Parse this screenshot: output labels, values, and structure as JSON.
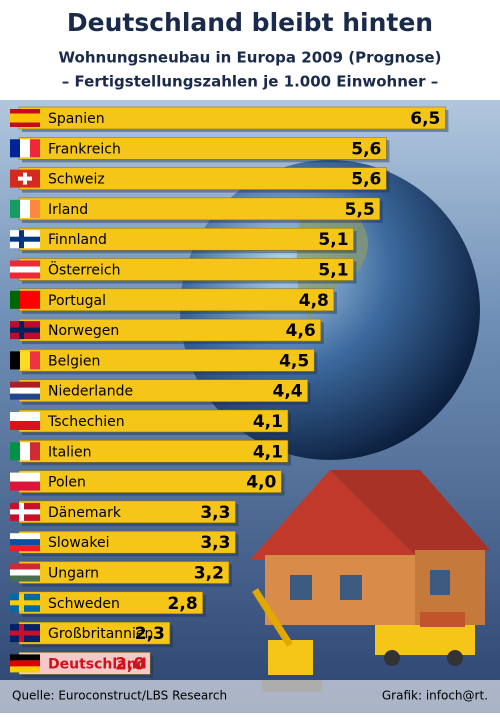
{
  "chart_data": {
    "type": "bar",
    "orientation": "horizontal",
    "title": "Deutschland bleibt hinten",
    "subtitle": "Wohnungsneubau in Europa 2009 (Prognose)",
    "subtitle2": "– Fertigstellungszahlen je 1.000 Einwohner –",
    "categories": [
      "Spanien",
      "Frankreich",
      "Schweiz",
      "Irland",
      "Finnland",
      "Österreich",
      "Portugal",
      "Norwegen",
      "Belgien",
      "Niederlande",
      "Tschechien",
      "Italien",
      "Polen",
      "Dänemark",
      "Slowakei",
      "Ungarn",
      "Schweden",
      "Großbritannien",
      "Deutschland"
    ],
    "values": [
      6.5,
      5.6,
      5.6,
      5.5,
      5.1,
      5.1,
      4.8,
      4.6,
      4.5,
      4.4,
      4.1,
      4.1,
      4.0,
      3.3,
      3.3,
      3.2,
      2.8,
      2.3,
      2.0
    ],
    "value_labels": [
      "6,5",
      "5,6",
      "5,6",
      "5,5",
      "5,1",
      "5,1",
      "4,8",
      "4,6",
      "4,5",
      "4,4",
      "4,1",
      "4,1",
      "4,0",
      "3,3",
      "3,3",
      "3,2",
      "2,8",
      "2,3",
      "2,0"
    ],
    "color": "#f5c518",
    "highlight_color": "#f3c9c9",
    "highlight_text_color": "#d0121b",
    "highlight_index": 18,
    "source": "Quelle: Euroconstruct/LBS Research",
    "credit": "Grafik: infoch@rt."
  }
}
